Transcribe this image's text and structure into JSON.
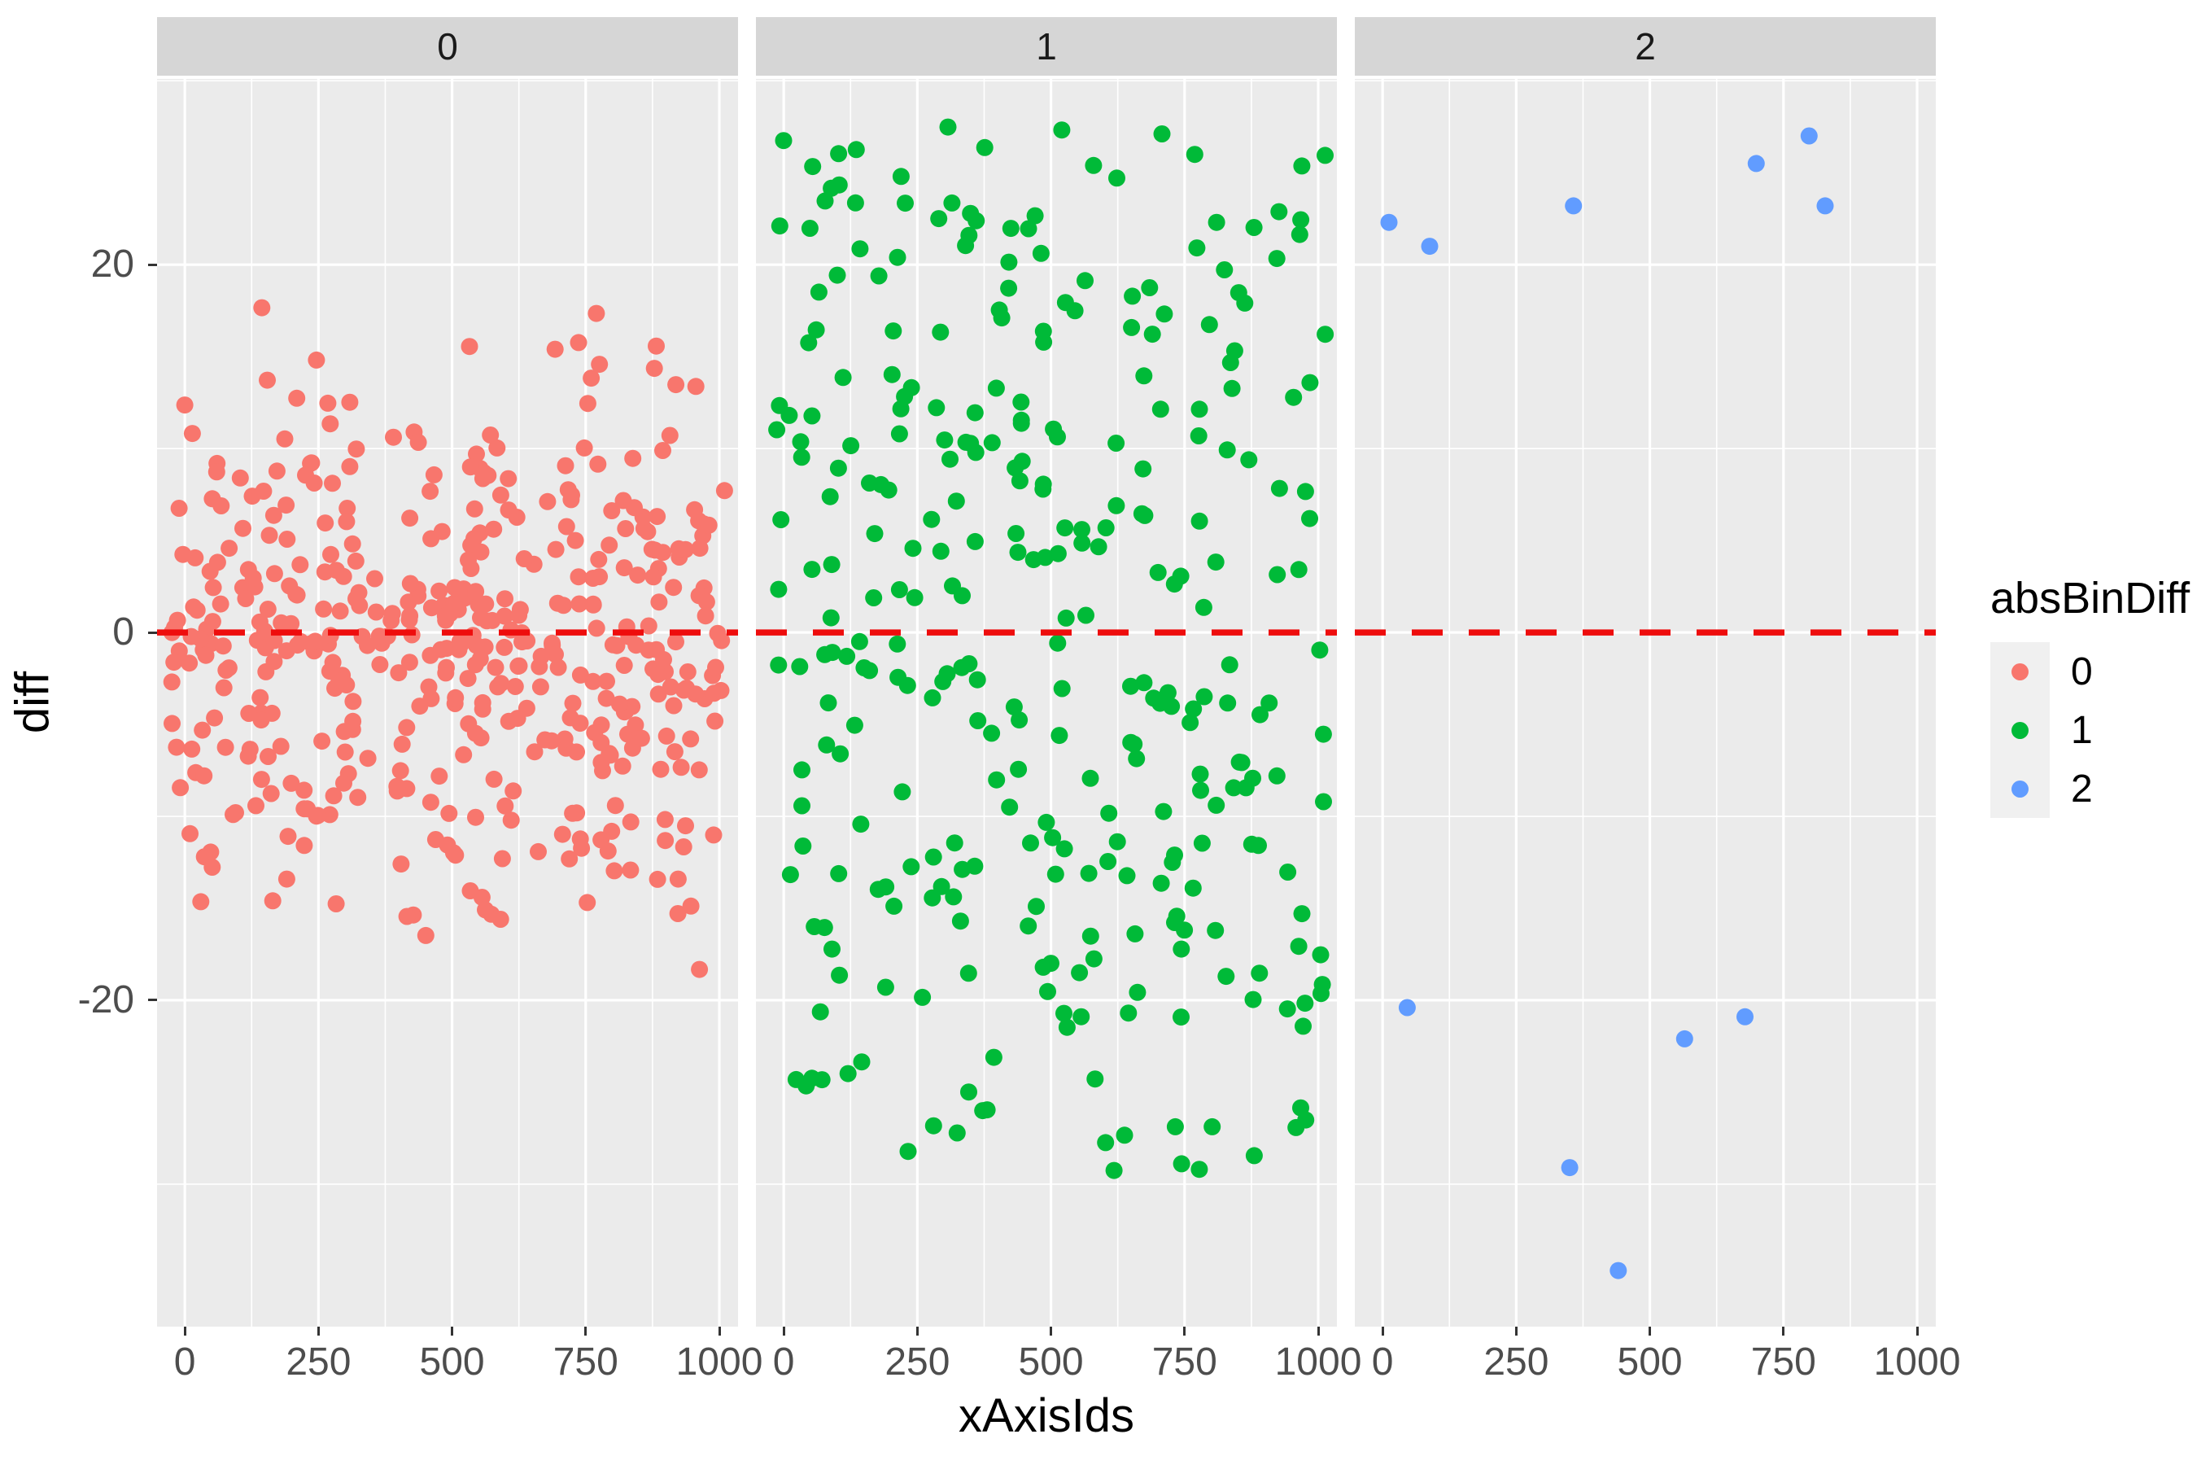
{
  "chart_data": {
    "type": "scatter",
    "xlabel": "xAxisIds",
    "ylabel": "diff",
    "facet_variable": "absBinDiff",
    "x_domain": [
      -52,
      1035
    ],
    "y_domain": [
      -37.75,
      30.1
    ],
    "x_ticks": [
      0,
      250,
      500,
      750,
      1000
    ],
    "x_tick_labels": [
      "0",
      "250",
      "500",
      "750",
      "1000"
    ],
    "x_minor_ticks": [
      125,
      375,
      625,
      875
    ],
    "y_ticks": [
      20,
      0,
      -20
    ],
    "y_tick_labels": [
      "20",
      "0",
      "-20"
    ],
    "y_minor_ticks": [
      30,
      10,
      -10,
      -30
    ],
    "grid": "white-on-gray",
    "hline": {
      "y": 0,
      "color": "#EE0D0D",
      "style": "dashed",
      "dash": [
        38,
        32
      ],
      "width": 7.5
    },
    "legend": {
      "title": "absBinDiff",
      "position": "right",
      "entries": [
        {
          "label": "0",
          "color": "#F8766D"
        },
        {
          "label": "1",
          "color": "#00BA38"
        },
        {
          "label": "2",
          "color": "#619CFF"
        }
      ]
    },
    "facets": [
      {
        "label": "0",
        "color": "#F8766D",
        "n": 460,
        "generator": "gaussian",
        "seed": 7,
        "y_mean": 0,
        "y_sd": 7.3,
        "y_clip": [
          -19.2,
          18.3
        ],
        "x_range": [
          -25,
          1010
        ]
      },
      {
        "label": "1",
        "color": "#00BA38",
        "n": 320,
        "generator": "two-sided-band",
        "seed": 13,
        "abs_y_core": [
          0.4,
          21.0
        ],
        "abs_y_tail_max_top": 27.5,
        "abs_y_tail_max_bottom": 29.6,
        "tail_fraction": 0.15,
        "x_range": [
          -20,
          1015
        ]
      },
      {
        "label": "2",
        "color": "#619CFF",
        "generator": "explicit",
        "points": [
          [
            12,
            22.3
          ],
          [
            88,
            21.0
          ],
          [
            357,
            23.2
          ],
          [
            699,
            25.5
          ],
          [
            798,
            27.0
          ],
          [
            828,
            23.2
          ],
          [
            46,
            -20.4
          ],
          [
            350,
            -29.1
          ],
          [
            441,
            -34.7
          ],
          [
            565,
            -22.1
          ],
          [
            678,
            -20.9
          ]
        ]
      }
    ],
    "colors": {
      "panel_bg": "#EBEBEB",
      "strip_bg": "#D6D6D6",
      "grid": "#FFFFFF",
      "tick_text": "#4D4D4D",
      "axis_title_text": "#000000",
      "legend_key_bg": "#F0F0F0"
    },
    "point_radius_px": 10.5
  }
}
